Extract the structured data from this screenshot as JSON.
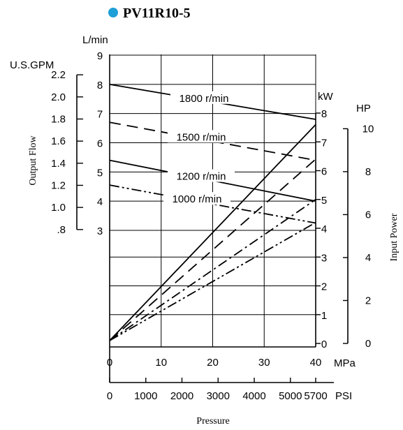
{
  "chart_data": {
    "type": "line",
    "title": "PV11R10-5",
    "title_bullet_color": "#1e9fd8",
    "xlabel": "Pressure",
    "ylabel_left": "Output Flow",
    "ylabel_right": "Input Power",
    "x_axis": {
      "unit": "MPa",
      "range": [
        0,
        40
      ],
      "ticks": [
        "0",
        "10",
        "20",
        "30",
        "40"
      ]
    },
    "x_axis_secondary": {
      "unit": "PSI",
      "ticks": [
        "0",
        "1000",
        "2000",
        "3000",
        "4000",
        "5000",
        "5700"
      ]
    },
    "flow_axis": {
      "unit": "L/min",
      "range": [
        3,
        9
      ],
      "ticks": [
        "3",
        "4",
        "5",
        "6",
        "7",
        "8",
        "9"
      ]
    },
    "flow_axis_secondary": {
      "unit": "U.S.GPM",
      "ticks": [
        ".8",
        "1.0",
        "1.2",
        "1.4",
        "1.6",
        "1.8",
        "2.0",
        "2.2"
      ]
    },
    "power_axis": {
      "unit": "kW",
      "range": [
        0,
        8
      ],
      "ticks": [
        "0",
        "1",
        "2",
        "3",
        "4",
        "5",
        "6",
        "7",
        "8"
      ]
    },
    "power_axis_secondary": {
      "unit": "HP",
      "ticks": [
        "0",
        "2",
        "4",
        "6",
        "8",
        "10"
      ]
    },
    "grid": true,
    "flow_series": [
      {
        "name": "1800 r/min",
        "dash": "solid",
        "x": [
          0,
          40
        ],
        "y": [
          8.0,
          6.8
        ]
      },
      {
        "name": "1500 r/min",
        "dash": "dash",
        "x": [
          0,
          40
        ],
        "y": [
          6.7,
          5.4
        ]
      },
      {
        "name": "1200 r/min",
        "dash": "solid",
        "x": [
          0,
          40
        ],
        "y": [
          5.4,
          4.0
        ]
      },
      {
        "name": "1000 r/min",
        "dash": "dashdotdot",
        "x": [
          0,
          40
        ],
        "y": [
          4.55,
          3.25
        ]
      }
    ],
    "power_series": [
      {
        "speed": "1800 r/min",
        "dash": "solid",
        "x": [
          0,
          40
        ],
        "y": [
          0.1,
          7.6
        ]
      },
      {
        "speed": "1500 r/min",
        "dash": "dash",
        "x": [
          0,
          40
        ],
        "y": [
          0.1,
          6.4
        ]
      },
      {
        "speed": "1200 r/min",
        "dash": "dashdot",
        "x": [
          0,
          40
        ],
        "y": [
          0.1,
          5.0
        ]
      },
      {
        "speed": "1000 r/min",
        "dash": "dashdotdot",
        "x": [
          0,
          40
        ],
        "y": [
          0.1,
          4.2
        ]
      }
    ]
  }
}
